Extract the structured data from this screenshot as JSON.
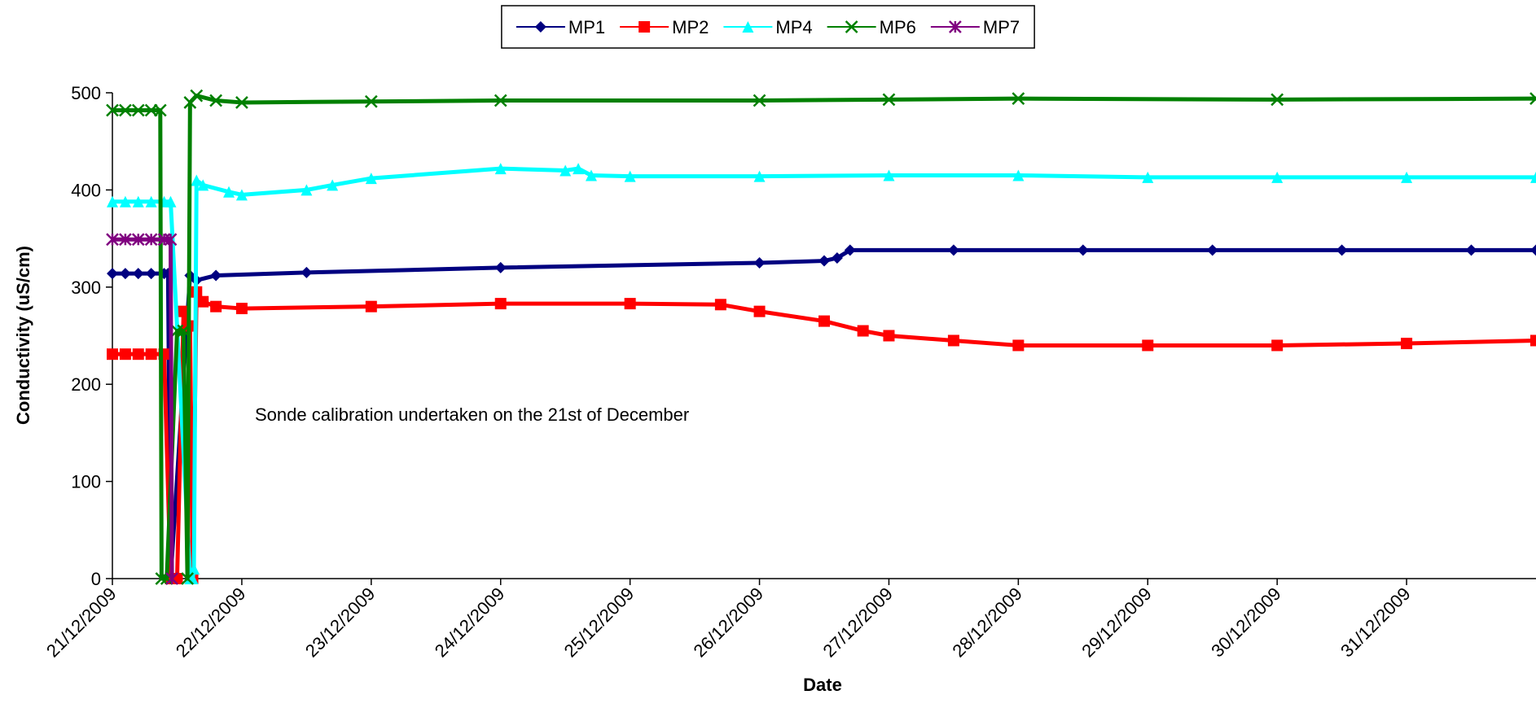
{
  "chart_data": {
    "type": "line",
    "y_label": "Conductivity (uS/cm)",
    "x_label": "Date",
    "annotation": "Sonde calibration undertaken on the 21st of December",
    "xlim": [
      0,
      11
    ],
    "xticks": [
      {
        "value": 0,
        "label": "21/12/2009"
      },
      {
        "value": 1,
        "label": "22/12/2009"
      },
      {
        "value": 2,
        "label": "23/12/2009"
      },
      {
        "value": 3,
        "label": "24/12/2009"
      },
      {
        "value": 4,
        "label": "25/12/2009"
      },
      {
        "value": 5,
        "label": "26/12/2009"
      },
      {
        "value": 6,
        "label": "27/12/2009"
      },
      {
        "value": 7,
        "label": "28/12/2009"
      },
      {
        "value": 8,
        "label": "29/12/2009"
      },
      {
        "value": 9,
        "label": "30/12/2009"
      },
      {
        "value": 10,
        "label": "31/12/2009"
      }
    ],
    "ylim": [
      0,
      500
    ],
    "yticks": [
      0,
      100,
      200,
      300,
      400,
      500
    ],
    "legend": "top",
    "series": [
      {
        "name": "MP1",
        "color": "#000080",
        "marker": "diamond",
        "x": [
          0,
          0.1,
          0.2,
          0.3,
          0.4,
          0.43,
          0.45,
          0.6,
          0.65,
          0.8,
          1.5,
          3,
          5,
          5.5,
          5.6,
          5.7,
          6.5,
          7.5,
          8.5,
          9.5,
          10.5,
          11
        ],
        "values": [
          314,
          314,
          314,
          314,
          314,
          314,
          0,
          312,
          307,
          312,
          315,
          320,
          325,
          327,
          330,
          338,
          338,
          338,
          338,
          338,
          338,
          338
        ]
      },
      {
        "name": "MP2",
        "color": "#ff0000",
        "marker": "square",
        "x": [
          0,
          0.1,
          0.2,
          0.3,
          0.4,
          0.45,
          0.5,
          0.55,
          0.6,
          0.62,
          0.65,
          0.7,
          0.8,
          1,
          2,
          3,
          4,
          4.7,
          5,
          5.5,
          5.8,
          6,
          6.5,
          7,
          8,
          9,
          10,
          11
        ],
        "values": [
          231,
          231,
          231,
          231,
          231,
          0,
          0,
          275,
          260,
          0,
          295,
          285,
          280,
          278,
          280,
          283,
          283,
          282,
          275,
          265,
          255,
          250,
          245,
          240,
          240,
          240,
          242,
          245
        ]
      },
      {
        "name": "MP4",
        "color": "#00ffff",
        "marker": "triangle",
        "x": [
          0,
          0.1,
          0.2,
          0.3,
          0.4,
          0.45,
          0.6,
          0.62,
          0.63,
          0.65,
          0.7,
          0.9,
          1,
          1.5,
          1.7,
          2,
          3,
          3.5,
          3.6,
          3.7,
          4,
          5,
          6,
          7,
          8,
          9,
          10,
          11
        ],
        "values": [
          388,
          388,
          388,
          388,
          388,
          388,
          0,
          0,
          10,
          410,
          405,
          398,
          395,
          400,
          405,
          412,
          422,
          420,
          422,
          415,
          414,
          414,
          415,
          415,
          413,
          413,
          413,
          413
        ]
      },
      {
        "name": "MP6",
        "color": "#008000",
        "marker": "cross",
        "x": [
          0,
          0.1,
          0.2,
          0.3,
          0.37,
          0.38,
          0.42,
          0.5,
          0.55,
          0.58,
          0.6,
          0.65,
          0.8,
          1,
          2,
          3,
          5,
          6,
          7,
          9,
          11
        ],
        "values": [
          482,
          482,
          482,
          482,
          482,
          0,
          0,
          255,
          255,
          0,
          490,
          497,
          492,
          490,
          491,
          492,
          492,
          493,
          494,
          493,
          494
        ]
      },
      {
        "name": "MP7",
        "color": "#800080",
        "marker": "star",
        "x": [
          0,
          0.1,
          0.2,
          0.3,
          0.4,
          0.45,
          0.46
        ],
        "values": [
          349,
          349,
          349,
          349,
          349,
          349,
          0
        ]
      }
    ]
  }
}
